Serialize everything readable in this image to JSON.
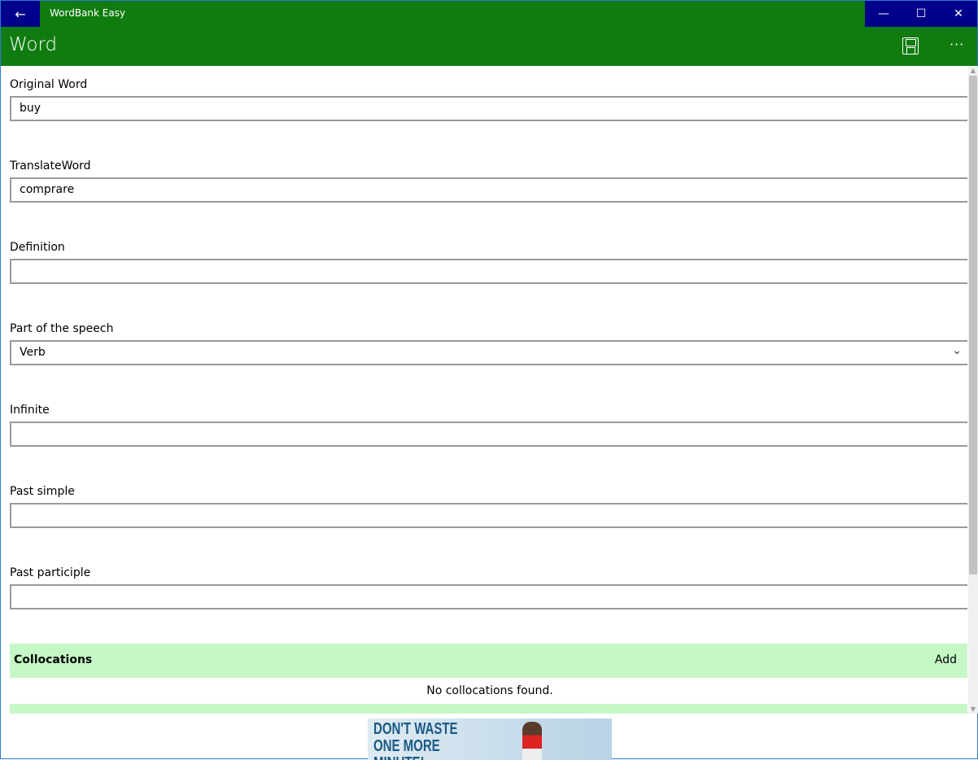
{
  "window": {
    "title": "WordBank Easy",
    "back": "←",
    "minimize": "—",
    "maximize": "☐",
    "close": "✕"
  },
  "header": {
    "title": "Word",
    "more": "···"
  },
  "fields": [
    {
      "label": "Original Word",
      "value": "buy"
    },
    {
      "label": "TranslateWord",
      "value": "comprare"
    },
    {
      "label": "Definition",
      "value": ""
    },
    {
      "label": "Part of the speech",
      "value": "Verb",
      "chevron": "⌄"
    },
    {
      "label": "Infinite",
      "value": ""
    },
    {
      "label": "Past simple",
      "value": ""
    },
    {
      "label": "Past participle",
      "value": ""
    }
  ],
  "collocations": {
    "title": "Collocations",
    "add": "Add",
    "empty": "No collocations found."
  },
  "ad": {
    "text": "DON'T WASTE ONE MORE MINUTE!"
  },
  "colors": {
    "title_bar": "#107c10",
    "accent_buttons": "#00008b",
    "section_bg": "#c6f7c6"
  }
}
